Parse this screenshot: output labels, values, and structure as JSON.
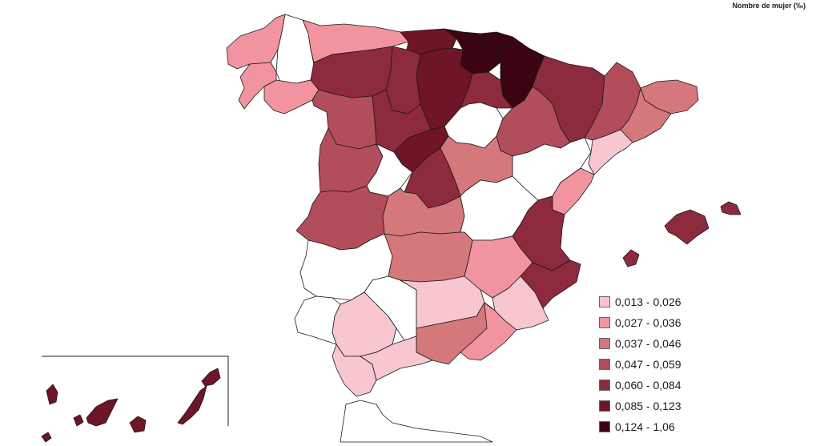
{
  "map": {
    "title": "Nombre de mujer (‰)",
    "legend": [
      {
        "label": "0,013 - 0,026",
        "color": "#f7c6cf"
      },
      {
        "label": "0,027 - 0,036",
        "color": "#f2949f"
      },
      {
        "label": "0,037 - 0,046",
        "color": "#d4787c"
      },
      {
        "label": "0,047 - 0,059",
        "color": "#b24d5b"
      },
      {
        "label": "0,060 - 0,084",
        "color": "#8e2a3d"
      },
      {
        "label": "0,085 - 0,123",
        "color": "#6e1527"
      },
      {
        "label": "0,124 - 1,06",
        "color": "#3a0511"
      }
    ],
    "no_data_color": "#ffffff",
    "provinces": [
      {
        "id": "a-coruna",
        "class": 1
      },
      {
        "id": "lugo",
        "class": -1
      },
      {
        "id": "asturias",
        "class": 1
      },
      {
        "id": "pontevedra",
        "class": 1
      },
      {
        "id": "ourense",
        "class": 1
      },
      {
        "id": "cantabria",
        "class": 5
      },
      {
        "id": "bizkaia",
        "class": 6
      },
      {
        "id": "gipuzkoa",
        "class": 6
      },
      {
        "id": "alava",
        "class": 6
      },
      {
        "id": "navarra",
        "class": 6
      },
      {
        "id": "leon",
        "class": 4
      },
      {
        "id": "palencia",
        "class": 4
      },
      {
        "id": "burgos",
        "class": 5
      },
      {
        "id": "la-rioja",
        "class": 4
      },
      {
        "id": "zamora",
        "class": 3
      },
      {
        "id": "valladolid",
        "class": 4
      },
      {
        "id": "soria",
        "class": -1
      },
      {
        "id": "segovia",
        "class": 5
      },
      {
        "id": "salamanca",
        "class": 3
      },
      {
        "id": "avila",
        "class": -1
      },
      {
        "id": "madrid",
        "class": 4
      },
      {
        "id": "huesca",
        "class": 4
      },
      {
        "id": "zaragoza",
        "class": 3
      },
      {
        "id": "teruel",
        "class": -1
      },
      {
        "id": "lleida",
        "class": 3
      },
      {
        "id": "girona",
        "class": 2
      },
      {
        "id": "barcelona",
        "class": 2
      },
      {
        "id": "tarragona",
        "class": 0
      },
      {
        "id": "guadalajara",
        "class": 2
      },
      {
        "id": "caceres",
        "class": 3
      },
      {
        "id": "toledo",
        "class": 2
      },
      {
        "id": "cuenca",
        "class": -1
      },
      {
        "id": "castellon",
        "class": 1
      },
      {
        "id": "valencia",
        "class": 4
      },
      {
        "id": "badajoz",
        "class": -1
      },
      {
        "id": "ciudad-real",
        "class": 2
      },
      {
        "id": "albacete",
        "class": 1
      },
      {
        "id": "alicante",
        "class": 4
      },
      {
        "id": "murcia",
        "class": 0
      },
      {
        "id": "huelva",
        "class": -1
      },
      {
        "id": "sevilla",
        "class": 0
      },
      {
        "id": "cordoba",
        "class": -1
      },
      {
        "id": "jaen",
        "class": 0
      },
      {
        "id": "granada",
        "class": 2
      },
      {
        "id": "almeria",
        "class": 1
      },
      {
        "id": "cadiz",
        "class": 0
      },
      {
        "id": "malaga",
        "class": 0
      },
      {
        "id": "mallorca",
        "class": 4
      },
      {
        "id": "menorca",
        "class": 4
      },
      {
        "id": "ibiza",
        "class": 4
      },
      {
        "id": "tenerife",
        "class": 5
      },
      {
        "id": "gran-canaria",
        "class": 5
      },
      {
        "id": "lanzarote-fuerteventura",
        "class": 5
      }
    ]
  }
}
